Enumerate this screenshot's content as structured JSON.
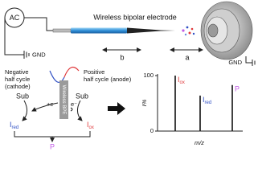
{
  "source": {
    "label": "AC",
    "ground": "GND"
  },
  "electrode": {
    "label": "Wireless bipolar electrode",
    "distance_b": "b",
    "distance_a": "a"
  },
  "inlet": {
    "ground": "GND"
  },
  "cycles": {
    "negative": [
      "Negative",
      "half cycle",
      "(cathode)"
    ],
    "positive": [
      "Positive",
      "half cycle (anode)"
    ],
    "bpe": "Wireless BPE",
    "substrates": [
      "Sub",
      "Sub"
    ],
    "electrons": [
      "+e",
      "e⁻"
    ]
  },
  "products": {
    "reduced": {
      "main": "I",
      "sub": "red",
      "color": "#2f4fc4"
    },
    "oxidized": {
      "main": "I",
      "sub": "ox",
      "color": "#e0393b"
    },
    "product": {
      "text": "P",
      "color": "#c25ce6"
    }
  },
  "spectrum": {
    "ylabel": "I%",
    "xlabel": "m/z",
    "ylim": [
      0,
      100
    ],
    "yticks": [
      0,
      100
    ],
    "peaks": [
      {
        "main": "I",
        "sub": "ox",
        "color": "#e0393b",
        "value": 100
      },
      {
        "main": "I",
        "sub": "red",
        "color": "#2f4fc4",
        "value": 64
      },
      {
        "main": "P",
        "color": "#c25ce6",
        "value": 83
      }
    ]
  }
}
